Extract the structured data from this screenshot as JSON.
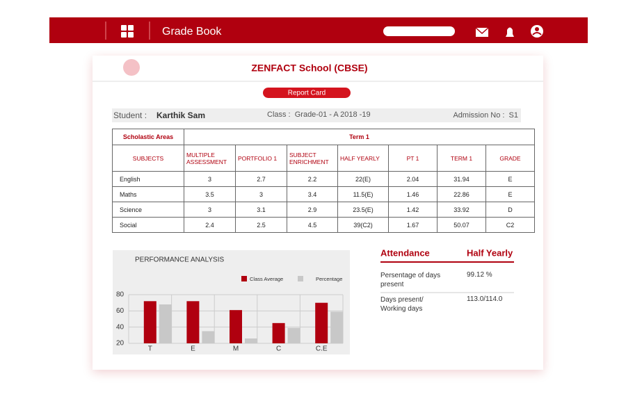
{
  "header": {
    "title": "Grade Book"
  },
  "school": "ZENFACT School (CBSE)",
  "button": "Report Card",
  "student": {
    "label": "Student :",
    "name": "Karthik Sam",
    "class": "Class :  Grade-01 - A 2018 -19",
    "admission": "Admission No :  S1"
  },
  "table": {
    "areas": "Scholastic Areas",
    "term": "Term 1",
    "columns": [
      "SUBJECTS",
      "MULTIPLE ASSESSMENT",
      "PORTFOLIO 1",
      "SUBJECT ENRICHMENT",
      "HALF YEARLY",
      "PT 1",
      "TERM 1",
      "GRADE"
    ],
    "rows": [
      [
        "English",
        "3",
        "2.7",
        "2.2",
        "22(E)",
        "2.04",
        "31.94",
        "E"
      ],
      [
        "Maths",
        "3.5",
        "3",
        "3.4",
        "11.5(E)",
        "1.46",
        "22.86",
        "E"
      ],
      [
        "Science",
        "3",
        "3.1",
        "2.9",
        "23.5(E)",
        "1.42",
        "33.92",
        "D"
      ],
      [
        "Social",
        "2.4",
        "2.5",
        "4.5",
        "39(C2)",
        "1.67",
        "50.07",
        "C2"
      ]
    ]
  },
  "chart_data": {
    "type": "bar",
    "title": "PERFORMANCE ANALYSIS",
    "categories": [
      "T",
      "E",
      "M",
      "C",
      "C.E"
    ],
    "series": [
      {
        "name": "Class Average",
        "color": "#b0000f",
        "values": [
          72,
          72,
          61,
          45,
          70
        ]
      },
      {
        "name": "Percentage",
        "color": "#c8c8c8",
        "values": [
          68,
          35,
          26,
          39,
          59
        ]
      }
    ],
    "ylim": [
      20,
      80
    ],
    "yticks": [
      20,
      40,
      60,
      80
    ],
    "grid": true
  },
  "attendance": {
    "header": [
      "Attendance",
      "Half Yearly"
    ],
    "rows": [
      [
        "Persentage of days present",
        "99.12 %"
      ],
      [
        "Days present/ Working days",
        "113.0/114.0"
      ]
    ]
  }
}
